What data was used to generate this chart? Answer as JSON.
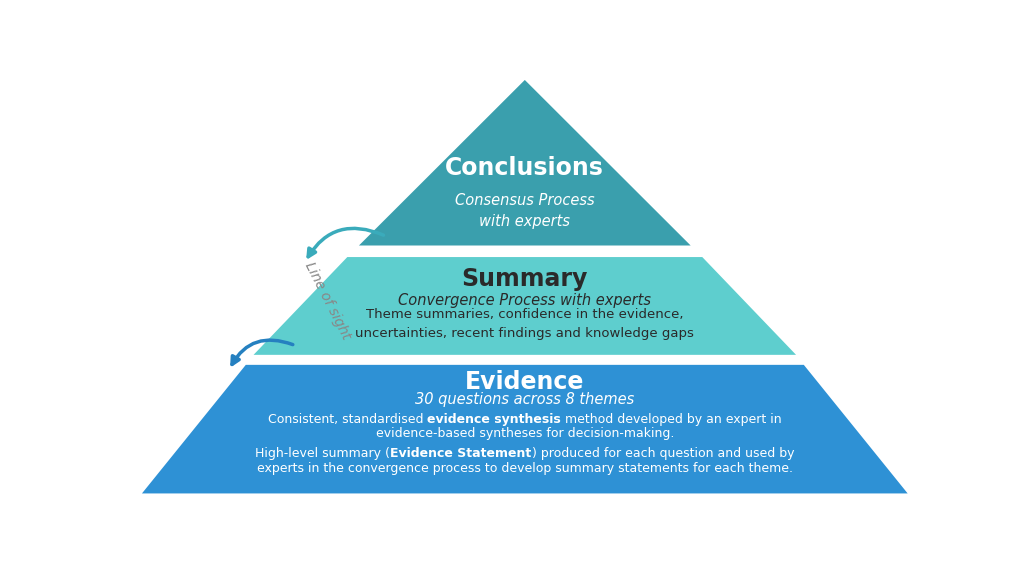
{
  "bg_color": "#ffffff",
  "top_color": "#3a9fad",
  "mid_color": "#5ecece",
  "bot_color": "#2e91d5",
  "arrow_teal": "#3aabbb",
  "arrow_blue": "#2580c0",
  "text_white": "#ffffff",
  "text_dark": "#2a2a2a",
  "text_gray": "#888888",
  "top_title": "Conclusions",
  "top_sub": "Consensus Process\nwith experts",
  "mid_title": "Summary",
  "mid_sub": "Convergence Process with experts",
  "mid_body": "Theme summaries, confidence in the evidence,\nuncertainties, recent findings and knowledge gaps",
  "bot_title": "Evidence",
  "bot_sub": "30 questions across 8 themes",
  "bot_line1_p1": "Consistent, standardised ",
  "bot_line1_b1": "evidence synthesis",
  "bot_line1_p2": " method developed by an expert in",
  "bot_line1_p3": "evidence-based syntheses for decision-making.",
  "bot_line2_p1": "High-level summary (",
  "bot_line2_b1": "Evidence Statement",
  "bot_line2_p2": ") produced for each question and used by",
  "bot_line2_p3": "experts in the convergence process to develop summary statements for each theme.",
  "line_of_sight": "Line of sight"
}
